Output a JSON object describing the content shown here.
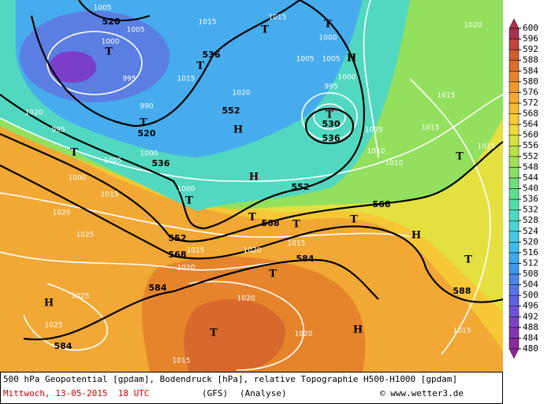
{
  "map": {
    "geopotential_labels": [
      520,
      536,
      552,
      520,
      536,
      552,
      536,
      530,
      568,
      568,
      552,
      568,
      584,
      584,
      584,
      588
    ],
    "pressure_labels": [
      1005,
      1015,
      1015,
      1000,
      1005,
      1000,
      1005,
      1005,
      995,
      1015,
      1020,
      1000,
      995,
      990,
      1020,
      995,
      1000,
      1005,
      1005,
      1010,
      1010,
      1000,
      1000,
      1015,
      1020,
      1025,
      1015,
      1020,
      1015,
      1020,
      1025,
      1025,
      1020,
      1020,
      1015,
      1015,
      1015,
      1015,
      1020,
      1015
    ],
    "centers": [
      "T",
      "T",
      "T",
      "T",
      "H",
      "T",
      "H",
      "T",
      "T",
      "H",
      "T",
      "T",
      "T",
      "T",
      "H",
      "T",
      "T",
      "T",
      "H",
      "T",
      "H"
    ]
  },
  "colorbar": {
    "ticks": [
      480,
      484,
      488,
      492,
      496,
      500,
      504,
      508,
      512,
      516,
      520,
      524,
      528,
      532,
      536,
      540,
      544,
      548,
      552,
      556,
      560,
      564,
      568,
      572,
      576,
      580,
      584,
      588,
      592,
      596,
      600
    ],
    "colors": [
      "#8a2a9a",
      "#8236b4",
      "#7a44c8",
      "#6e52d8",
      "#6262e0",
      "#5674e6",
      "#4a86ea",
      "#4098ee",
      "#3caaf0",
      "#3ebcee",
      "#44c8e4",
      "#4ad2d4",
      "#4edac0",
      "#52dea8",
      "#5ae090",
      "#6ee078",
      "#86e064",
      "#a2e052",
      "#bee048",
      "#d8e040",
      "#ecdc3a",
      "#f6cc36",
      "#f8ba32",
      "#f4a82e",
      "#f0962c",
      "#e8822a",
      "#de6e2a",
      "#d05a30",
      "#c0443e",
      "#a8304e"
    ]
  },
  "caption": {
    "line1": "500 hPa Geopotential [gpdam], Bodendruck [hPa], relative Topographie H500-H1000 [gpdam]",
    "date": "Mittwoch, 13-05-2015  18 UTC",
    "model": "(GFS)",
    "mode": "(Analyse)",
    "source": "© www.wetter3.de"
  }
}
